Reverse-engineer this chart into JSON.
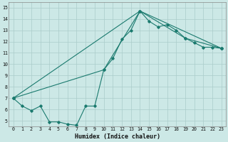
{
  "xlabel": "Humidex (Indice chaleur)",
  "background_color": "#cce8e6",
  "grid_color": "#aaccca",
  "line_color": "#1a7a6e",
  "xlim": [
    -0.5,
    23.5
  ],
  "ylim": [
    4.5,
    15.5
  ],
  "xticks": [
    0,
    1,
    2,
    3,
    4,
    5,
    6,
    7,
    8,
    9,
    10,
    11,
    12,
    13,
    14,
    15,
    16,
    17,
    18,
    19,
    20,
    21,
    22,
    23
  ],
  "yticks": [
    5,
    6,
    7,
    8,
    9,
    10,
    11,
    12,
    13,
    14,
    15
  ],
  "line1_x": [
    0,
    1,
    2,
    3,
    4,
    5,
    6,
    7,
    8,
    9,
    10,
    11,
    12,
    13,
    14,
    15,
    16,
    17,
    18,
    19,
    20,
    21,
    22,
    23
  ],
  "line1_y": [
    7.0,
    6.3,
    5.9,
    6.3,
    4.9,
    4.9,
    4.7,
    4.6,
    6.3,
    6.3,
    9.5,
    10.5,
    12.2,
    13.0,
    14.7,
    13.8,
    13.3,
    13.5,
    13.0,
    12.3,
    11.9,
    11.5,
    11.5,
    11.4
  ],
  "line2_x": [
    0,
    10,
    14,
    19,
    23
  ],
  "line2_y": [
    7.0,
    9.5,
    14.7,
    12.3,
    11.4
  ],
  "line3_x": [
    0,
    14,
    23
  ],
  "line3_y": [
    7.0,
    14.7,
    11.4
  ]
}
